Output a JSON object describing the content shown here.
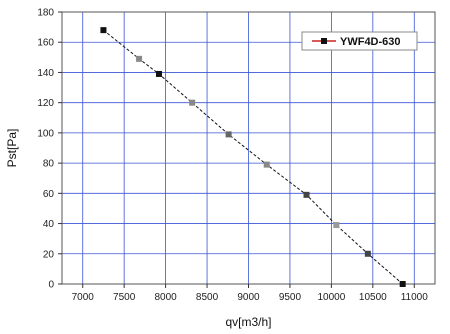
{
  "chart_data": {
    "type": "line",
    "title": "",
    "xlabel": "qv[m3/h]",
    "ylabel": "Pst[Pa]",
    "xlim": [
      6750,
      11250
    ],
    "ylim": [
      0,
      180
    ],
    "xticks": [
      7000,
      7500,
      8000,
      8500,
      9000,
      9500,
      10000,
      10500,
      11000
    ],
    "yticks": [
      0,
      20,
      40,
      60,
      80,
      100,
      120,
      140,
      160,
      180
    ],
    "grid": true,
    "legend_position": "top-right",
    "series": [
      {
        "name": "YWF4D-630",
        "color": "#111111",
        "points": [
          {
            "x": 7250,
            "y": 168
          },
          {
            "x": 7680,
            "y": 149
          },
          {
            "x": 7920,
            "y": 139
          },
          {
            "x": 8320,
            "y": 120
          },
          {
            "x": 8760,
            "y": 99
          },
          {
            "x": 9220,
            "y": 79
          },
          {
            "x": 9700,
            "y": 59
          },
          {
            "x": 10060,
            "y": 39
          },
          {
            "x": 10440,
            "y": 20
          },
          {
            "x": 10860,
            "y": 0
          }
        ],
        "point_colors": [
          "#111111",
          "#888888",
          "#111111",
          "#888888",
          "#666666",
          "#888888",
          "#444444",
          "#999999",
          "#444444",
          "#111111"
        ]
      }
    ]
  }
}
